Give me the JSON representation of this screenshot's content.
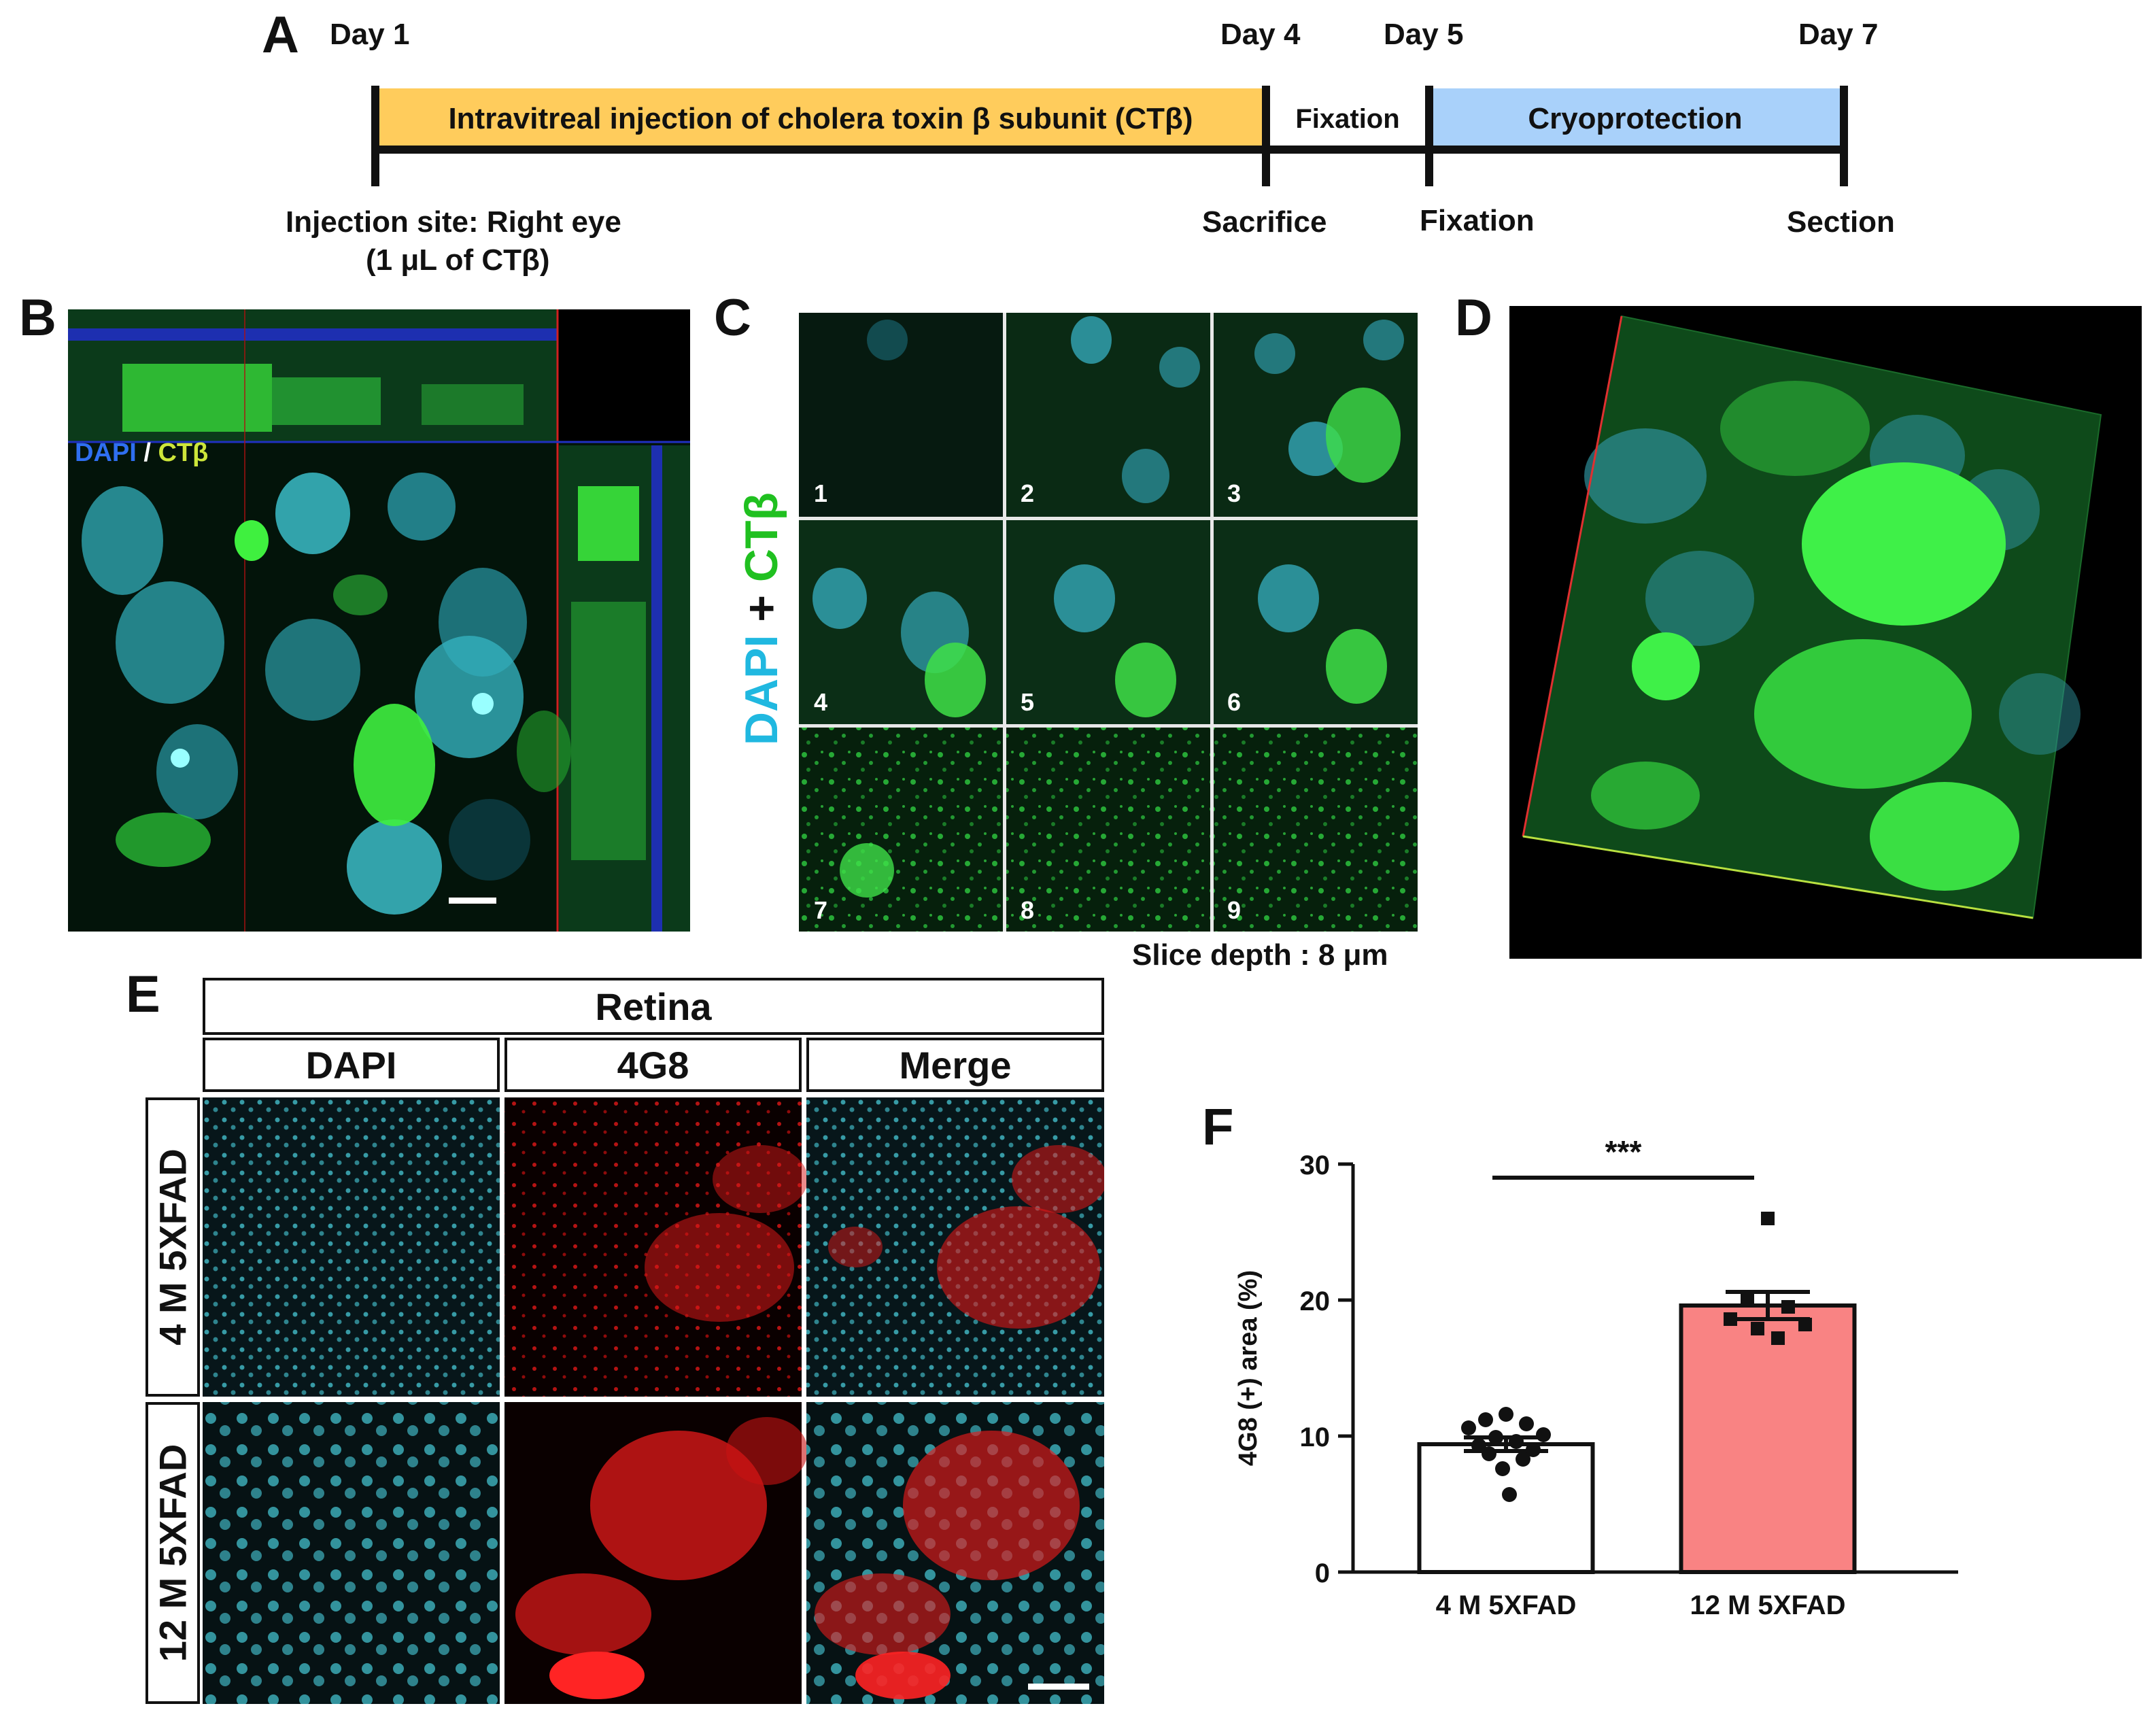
{
  "panel_labels": {
    "a": "A",
    "b": "B",
    "c": "C",
    "d": "D",
    "e": "E",
    "f": "F"
  },
  "timeline": {
    "day1": "Day 1",
    "day4": "Day 4",
    "day5": "Day 5",
    "day7": "Day 7",
    "seg_injection": "Intravitreal injection of cholera toxin β subunit (CTβ)",
    "seg_fixation": "Fixation",
    "seg_cryo": "Cryoprotection",
    "below_site": "Injection site: Right eye",
    "below_volume": "(1 μL of CTβ)",
    "below_sacrifice": "Sacrifice",
    "below_fixation": "Fixation",
    "below_section": "Section",
    "colors": {
      "injection": "#FFCC5C",
      "cryo": "#A9D1FA",
      "fixation": "#ffffff"
    }
  },
  "panel_b": {
    "legend_dapi": "DAPI",
    "legend_sep": " / ",
    "legend_ctb": "CTβ"
  },
  "panel_c": {
    "vlabel_dapi": "DAPI",
    "vlabel_plus": " + ",
    "vlabel_ctb": "CTβ",
    "tiles": [
      "1",
      "2",
      "3",
      "4",
      "5",
      "6",
      "7",
      "8",
      "9"
    ],
    "slice_depth": "Slice depth : 8 μm"
  },
  "panel_e": {
    "header_retina": "Retina",
    "col_dapi": "DAPI",
    "col_4g8": "4G8",
    "col_merge": "Merge",
    "row_4m": "4 M 5XFAD",
    "row_12m": "12 M 5XFAD"
  },
  "chart_data": {
    "type": "bar",
    "categories": [
      "4 M 5XFAD",
      "12 M 5XFAD"
    ],
    "values": [
      9.4,
      19.6
    ],
    "sem": [
      0.5,
      1.0
    ],
    "points": [
      [
        11.6,
        11.2,
        10.9,
        10.6,
        10.1,
        9.9,
        9.6,
        9.3,
        9.0,
        8.7,
        8.3,
        7.6,
        5.7
      ],
      [
        26.0,
        20.2,
        19.5,
        18.6,
        18.2,
        17.9,
        17.2
      ]
    ],
    "bar_colors": [
      "#ffffff",
      "#F98383"
    ],
    "ylabel": "4G8 (+) area (%)",
    "ylim": [
      0,
      30
    ],
    "yticks": [
      0,
      10,
      20,
      30
    ],
    "significance": "***"
  }
}
